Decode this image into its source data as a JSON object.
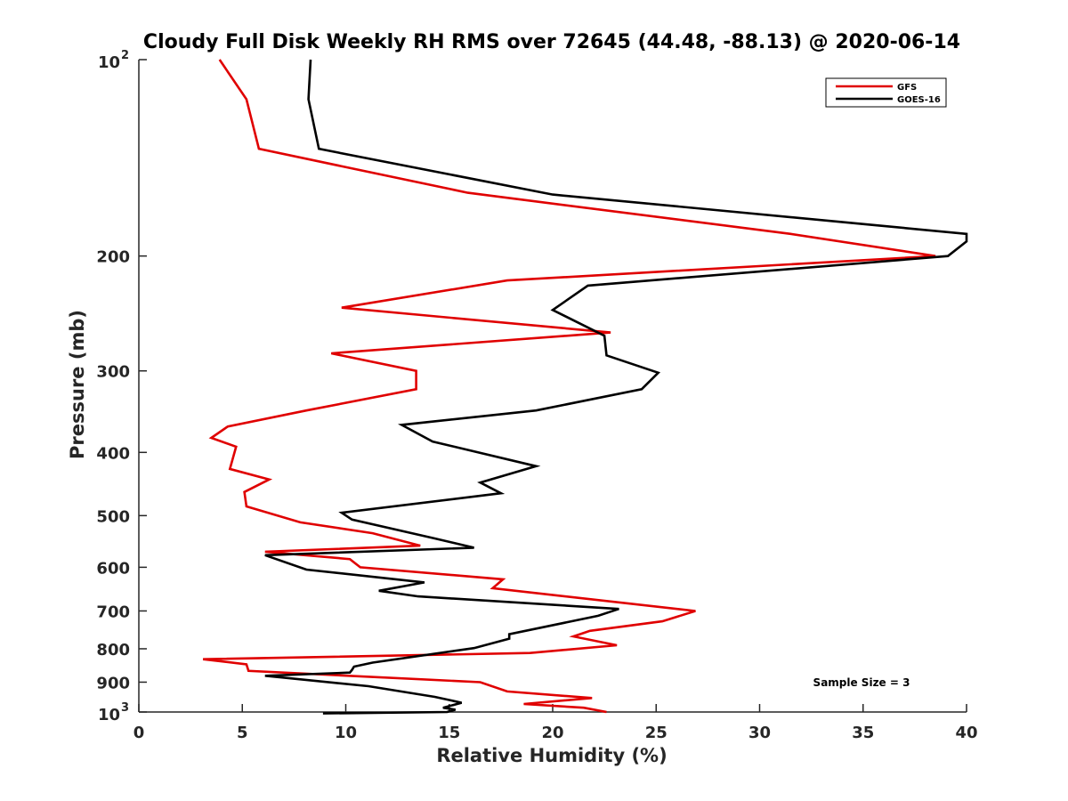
{
  "chart_data": {
    "type": "line",
    "title": "Cloudy Full Disk Weekly RH RMS over 72645 (44.48, -88.13) @ 2020-06-14",
    "xlabel": "Relative Humidity (%)",
    "ylabel": "Pressure (mb)",
    "xlim": [
      0,
      40
    ],
    "ylim": [
      100,
      1000
    ],
    "yscale": "log",
    "y_reversed": true,
    "grid": false,
    "legend_position": "top-right",
    "x_ticks": [
      "0",
      "5",
      "10",
      "15",
      "20",
      "25",
      "30",
      "35",
      "40"
    ],
    "y_ticks": [
      {
        "value": 100,
        "base": "10",
        "exp": "2"
      },
      {
        "value": 200,
        "label": "200"
      },
      {
        "value": 300,
        "label": "300"
      },
      {
        "value": 400,
        "label": "400"
      },
      {
        "value": 500,
        "label": "500"
      },
      {
        "value": 600,
        "label": "600"
      },
      {
        "value": 700,
        "label": "700"
      },
      {
        "value": 800,
        "label": "800"
      },
      {
        "value": 900,
        "label": "900"
      },
      {
        "value": 1000,
        "base": "10",
        "exp": "3"
      }
    ],
    "annotation": "Sample Size = 3",
    "series": [
      {
        "name": "GFS",
        "color": "#e00000",
        "points": [
          [
            3.9,
            100
          ],
          [
            5.2,
            115
          ],
          [
            5.8,
            137
          ],
          [
            15.9,
            160
          ],
          [
            31.5,
            185
          ],
          [
            38.5,
            200
          ],
          [
            17.8,
            218
          ],
          [
            9.8,
            240
          ],
          [
            22.8,
            262
          ],
          [
            9.3,
            282
          ],
          [
            13.4,
            300
          ],
          [
            13.4,
            320
          ],
          [
            8.1,
            345
          ],
          [
            4.3,
            365
          ],
          [
            3.5,
            380
          ],
          [
            4.7,
            392
          ],
          [
            4.4,
            424
          ],
          [
            6.3,
            440
          ],
          [
            5.1,
            460
          ],
          [
            5.2,
            484
          ],
          [
            7.8,
            512
          ],
          [
            11.3,
            532
          ],
          [
            13.6,
            556
          ],
          [
            6.1,
            568
          ],
          [
            10.2,
            583
          ],
          [
            10.7,
            600
          ],
          [
            17.6,
            626
          ],
          [
            17.1,
            646
          ],
          [
            26.9,
            700
          ],
          [
            25.3,
            726
          ],
          [
            21.8,
            751
          ],
          [
            21.0,
            766
          ],
          [
            23.1,
            790
          ],
          [
            18.9,
            812
          ],
          [
            3.1,
            830
          ],
          [
            5.2,
            845
          ],
          [
            5.3,
            865
          ],
          [
            16.5,
            900
          ],
          [
            17.8,
            930
          ],
          [
            21.9,
            952
          ],
          [
            18.6,
            972
          ],
          [
            21.5,
            985
          ],
          [
            22.6,
            1000
          ]
        ]
      },
      {
        "name": "GOES-16",
        "color": "#000000",
        "points": [
          [
            8.3,
            100
          ],
          [
            8.2,
            115
          ],
          [
            8.7,
            137
          ],
          [
            20.0,
            161
          ],
          [
            40.0,
            185
          ],
          [
            40.0,
            190
          ],
          [
            39.1,
            200
          ],
          [
            21.7,
            222
          ],
          [
            20.0,
            242
          ],
          [
            22.5,
            265
          ],
          [
            22.6,
            284
          ],
          [
            25.1,
            302
          ],
          [
            24.3,
            320
          ],
          [
            19.2,
            345
          ],
          [
            12.7,
            363
          ],
          [
            14.2,
            385
          ],
          [
            19.2,
            420
          ],
          [
            16.5,
            445
          ],
          [
            17.5,
            462
          ],
          [
            9.8,
            495
          ],
          [
            10.3,
            507
          ],
          [
            14.3,
            542
          ],
          [
            16.2,
            560
          ],
          [
            6.1,
            575
          ],
          [
            8.1,
            605
          ],
          [
            13.8,
            633
          ],
          [
            11.6,
            652
          ],
          [
            13.5,
            665
          ],
          [
            23.2,
            695
          ],
          [
            22.2,
            712
          ],
          [
            17.9,
            760
          ],
          [
            17.9,
            772
          ],
          [
            16.2,
            798
          ],
          [
            11.3,
            840
          ],
          [
            10.4,
            852
          ],
          [
            10.3,
            862
          ],
          [
            10.2,
            870
          ],
          [
            6.1,
            880
          ],
          [
            11.1,
            913
          ],
          [
            14.3,
            948
          ],
          [
            15.6,
            968
          ],
          [
            14.7,
            985
          ],
          [
            15.3,
            992
          ],
          [
            14.9,
            1000
          ],
          [
            8.9,
            1005
          ]
        ]
      }
    ]
  }
}
